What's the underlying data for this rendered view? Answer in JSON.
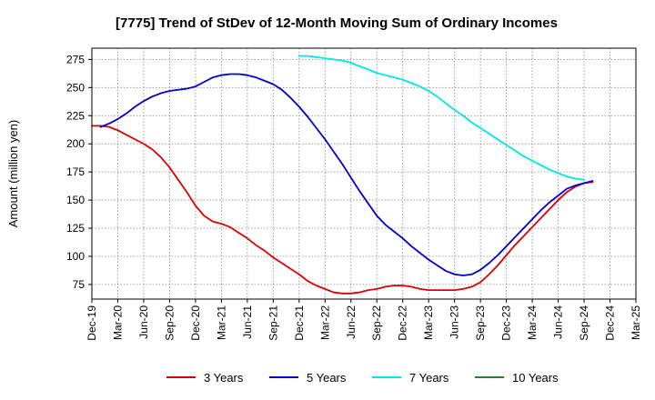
{
  "chart_data": {
    "type": "line",
    "title": "[7775]  Trend of StDev of 12-Month Moving Sum of Ordinary Incomes",
    "xlabel": "",
    "ylabel": "Amount (million yen)",
    "x_ticks": [
      "Dec-19",
      "Mar-20",
      "Jun-20",
      "Sep-20",
      "Dec-20",
      "Mar-21",
      "Jun-21",
      "Sep-21",
      "Dec-21",
      "Mar-22",
      "Jun-22",
      "Sep-22",
      "Dec-22",
      "Mar-23",
      "Jun-23",
      "Sep-23",
      "Dec-23",
      "Mar-24",
      "Jun-24",
      "Sep-24",
      "Dec-24",
      "Mar-25"
    ],
    "y_ticks": [
      75,
      100,
      125,
      150,
      175,
      200,
      225,
      250,
      275
    ],
    "ylim": [
      62,
      285
    ],
    "grid": true,
    "legend_position": "bottom",
    "series": [
      {
        "name": "3 Years",
        "color": "#dd0000",
        "points": [
          [
            "Dec-19",
            216
          ],
          [
            "Jan-20",
            216
          ],
          [
            "Feb-20",
            215
          ],
          [
            "Mar-20",
            212
          ],
          [
            "Apr-20",
            208
          ],
          [
            "May-20",
            204
          ],
          [
            "Jun-20",
            200
          ],
          [
            "Jul-20",
            195
          ],
          [
            "Aug-20",
            188
          ],
          [
            "Sep-20",
            179
          ],
          [
            "Oct-20",
            168
          ],
          [
            "Nov-20",
            157
          ],
          [
            "Dec-20",
            145
          ],
          [
            "Jan-21",
            136
          ],
          [
            "Feb-21",
            131
          ],
          [
            "Mar-21",
            129
          ],
          [
            "Apr-21",
            126
          ],
          [
            "May-21",
            121
          ],
          [
            "Jun-21",
            116
          ],
          [
            "Jul-21",
            110
          ],
          [
            "Aug-21",
            105
          ],
          [
            "Sep-21",
            99
          ],
          [
            "Oct-21",
            94
          ],
          [
            "Nov-21",
            89
          ],
          [
            "Dec-21",
            84
          ],
          [
            "Jan-22",
            78
          ],
          [
            "Feb-22",
            74
          ],
          [
            "Mar-22",
            71
          ],
          [
            "Apr-22",
            68
          ],
          [
            "May-22",
            67
          ],
          [
            "Jun-22",
            67
          ],
          [
            "Jul-22",
            68
          ],
          [
            "Aug-22",
            70
          ],
          [
            "Sep-22",
            71
          ],
          [
            "Oct-22",
            73
          ],
          [
            "Nov-22",
            74
          ],
          [
            "Dec-22",
            74
          ],
          [
            "Jan-23",
            73
          ],
          [
            "Feb-23",
            71
          ],
          [
            "Mar-23",
            70
          ],
          [
            "Apr-23",
            70
          ],
          [
            "May-23",
            70
          ],
          [
            "Jun-23",
            70
          ],
          [
            "Jul-23",
            71
          ],
          [
            "Aug-23",
            73
          ],
          [
            "Sep-23",
            77
          ],
          [
            "Oct-23",
            84
          ],
          [
            "Nov-23",
            92
          ],
          [
            "Dec-23",
            101
          ],
          [
            "Jan-24",
            110
          ],
          [
            "Feb-24",
            118
          ],
          [
            "Mar-24",
            126
          ],
          [
            "Apr-24",
            134
          ],
          [
            "May-24",
            142
          ],
          [
            "Jun-24",
            150
          ],
          [
            "Jul-24",
            157
          ],
          [
            "Aug-24",
            162
          ],
          [
            "Sep-24",
            165
          ],
          [
            "Oct-24",
            166
          ]
        ]
      },
      {
        "name": "5 Years",
        "color": "#0000cc",
        "points": [
          [
            "Jan-20",
            215
          ],
          [
            "Feb-20",
            218
          ],
          [
            "Mar-20",
            222
          ],
          [
            "Apr-20",
            227
          ],
          [
            "May-20",
            233
          ],
          [
            "Jun-20",
            238
          ],
          [
            "Jul-20",
            242
          ],
          [
            "Aug-20",
            245
          ],
          [
            "Sep-20",
            247
          ],
          [
            "Oct-20",
            248
          ],
          [
            "Nov-20",
            249
          ],
          [
            "Dec-20",
            251
          ],
          [
            "Jan-21",
            255
          ],
          [
            "Feb-21",
            259
          ],
          [
            "Mar-21",
            261
          ],
          [
            "Apr-21",
            262
          ],
          [
            "May-21",
            262
          ],
          [
            "Jun-21",
            261
          ],
          [
            "Jul-21",
            259
          ],
          [
            "Aug-21",
            256
          ],
          [
            "Sep-21",
            253
          ],
          [
            "Oct-21",
            248
          ],
          [
            "Nov-21",
            241
          ],
          [
            "Dec-21",
            233
          ],
          [
            "Jan-22",
            224
          ],
          [
            "Feb-22",
            214
          ],
          [
            "Mar-22",
            204
          ],
          [
            "Apr-22",
            193
          ],
          [
            "May-22",
            182
          ],
          [
            "Jun-22",
            170
          ],
          [
            "Jul-22",
            158
          ],
          [
            "Aug-22",
            147
          ],
          [
            "Sep-22",
            136
          ],
          [
            "Oct-22",
            128
          ],
          [
            "Nov-22",
            122
          ],
          [
            "Dec-22",
            116
          ],
          [
            "Jan-23",
            109
          ],
          [
            "Feb-23",
            103
          ],
          [
            "Mar-23",
            97
          ],
          [
            "Apr-23",
            92
          ],
          [
            "May-23",
            87
          ],
          [
            "Jun-23",
            84
          ],
          [
            "Jul-23",
            83
          ],
          [
            "Aug-23",
            84
          ],
          [
            "Sep-23",
            88
          ],
          [
            "Oct-23",
            94
          ],
          [
            "Nov-23",
            101
          ],
          [
            "Dec-23",
            109
          ],
          [
            "Jan-24",
            117
          ],
          [
            "Feb-24",
            125
          ],
          [
            "Mar-24",
            133
          ],
          [
            "Apr-24",
            141
          ],
          [
            "May-24",
            148
          ],
          [
            "Jun-24",
            154
          ],
          [
            "Jul-24",
            160
          ],
          [
            "Aug-24",
            163
          ],
          [
            "Sep-24",
            165
          ],
          [
            "Oct-24",
            167
          ]
        ]
      },
      {
        "name": "7 Years",
        "color": "#00e5ee",
        "points": [
          [
            "Dec-21",
            278
          ],
          [
            "Jan-22",
            278
          ],
          [
            "Feb-22",
            277
          ],
          [
            "Mar-22",
            276
          ],
          [
            "Apr-22",
            275
          ],
          [
            "May-22",
            274
          ],
          [
            "Jun-22",
            272
          ],
          [
            "Jul-22",
            269
          ],
          [
            "Aug-22",
            266
          ],
          [
            "Sep-22",
            263
          ],
          [
            "Oct-22",
            261
          ],
          [
            "Nov-22",
            259
          ],
          [
            "Dec-22",
            257
          ],
          [
            "Jan-23",
            254
          ],
          [
            "Feb-23",
            251
          ],
          [
            "Mar-23",
            247
          ],
          [
            "Apr-23",
            242
          ],
          [
            "May-23",
            236
          ],
          [
            "Jun-23",
            230
          ],
          [
            "Jul-23",
            225
          ],
          [
            "Aug-23",
            219
          ],
          [
            "Sep-23",
            214
          ],
          [
            "Oct-23",
            209
          ],
          [
            "Nov-23",
            204
          ],
          [
            "Dec-23",
            199
          ],
          [
            "Jan-24",
            194
          ],
          [
            "Feb-24",
            189
          ],
          [
            "Mar-24",
            185
          ],
          [
            "Apr-24",
            181
          ],
          [
            "May-24",
            177
          ],
          [
            "Jun-24",
            174
          ],
          [
            "Jul-24",
            171
          ],
          [
            "Aug-24",
            169
          ],
          [
            "Sep-24",
            168
          ]
        ]
      },
      {
        "name": "10 Years",
        "color": "#228822",
        "points": []
      }
    ]
  }
}
